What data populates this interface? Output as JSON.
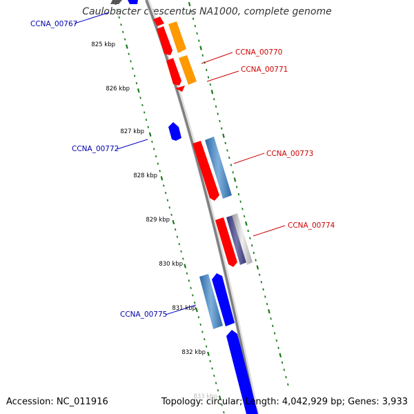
{
  "title": "Caulobacter crescentus NA1000, complete genome",
  "footer": {
    "accession": "Accession: NC_011916",
    "info": "Topology: circular; Length: 4,042,929 bp; Genes: 3,933"
  },
  "colors": {
    "backbone": "#808080",
    "tick": "#1a7a1a",
    "forward_gene": "#ff0000",
    "reverse_gene": "#0000ff",
    "orange_gene": "#ff9900",
    "steelblue_gene": "#4a86c0",
    "label_red": "#cc0000",
    "label_blue": "#0000aa"
  },
  "kbp_labels": [
    "825 kbp",
    "826 kbp",
    "827 kbp",
    "828 kbp",
    "829 kbp",
    "830 kbp",
    "831 kbp",
    "832 kbp",
    "833 kbp"
  ],
  "gene_labels": [
    {
      "text": "CCNA_00767",
      "strand": "reverse"
    },
    {
      "text": "CCNA_00770",
      "strand": "forward"
    },
    {
      "text": "CCNA_00771",
      "strand": "forward"
    },
    {
      "text": "CCNA_00772",
      "strand": "reverse"
    },
    {
      "text": "CCNA_00773",
      "strand": "forward"
    },
    {
      "text": "CCNA_00774",
      "strand": "forward"
    },
    {
      "text": "CCNA_00775",
      "strand": "reverse"
    }
  ]
}
